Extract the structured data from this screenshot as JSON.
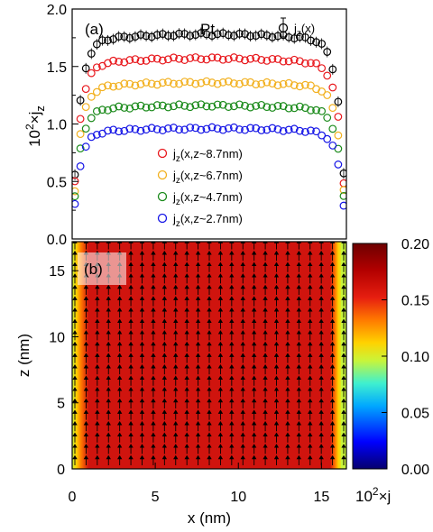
{
  "chart_data": [
    {
      "type": "scatter",
      "panel_label": "(a)",
      "material_label": "Pt",
      "ylabel": "10²×jz",
      "ylabel_base": "10",
      "ylabel_exp": "2",
      "ylabel_tail": "×j",
      "ylabel_sub": "z",
      "xlim": [
        0,
        16.5
      ],
      "ylim": [
        0,
        2.0
      ],
      "yticks": [
        "0.0",
        "0.5",
        "1.0",
        "1.5",
        "2.0"
      ],
      "legend_top": {
        "main": "j",
        "sub": "z",
        "tail": "(x)",
        "color": "#000000"
      },
      "legend": [
        {
          "main": "j",
          "sub": "z",
          "tail": "(x,z~8.7nm)",
          "color": "#e8171c"
        },
        {
          "main": "j",
          "sub": "z",
          "tail": "(x,z~6.7nm)",
          "color": "#f2b01e"
        },
        {
          "main": "j",
          "sub": "z",
          "tail": "(x,z~4.7nm)",
          "color": "#1a8a1a"
        },
        {
          "main": "j",
          "sub": "z",
          "tail": "(x,z~2.7nm)",
          "color": "#1414e6"
        }
      ],
      "series": [
        {
          "color": "#000000",
          "plateau": 1.78,
          "edge": 0.42,
          "error_bars": true
        },
        {
          "color": "#e8171c",
          "plateau": 1.57,
          "edge": 0.28,
          "error_bars": false
        },
        {
          "color": "#f2b01e",
          "plateau": 1.36,
          "edge": 0.2,
          "error_bars": false
        },
        {
          "color": "#1a8a1a",
          "plateau": 1.16,
          "edge": 0.15,
          "error_bars": false
        },
        {
          "color": "#1414e6",
          "plateau": 0.96,
          "edge": 0.1,
          "error_bars": false
        }
      ]
    },
    {
      "type": "heatmap",
      "panel_label": "(b)",
      "xlabel": "x (nm)",
      "ylabel": "z (nm)",
      "xlim": [
        0,
        16.5
      ],
      "ylim": [
        0,
        17.2
      ],
      "xticks": [
        "0",
        "5",
        "10",
        "15"
      ],
      "yticks": [
        "0",
        "5",
        "10",
        "15"
      ],
      "colorbar": {
        "ticks": [
          "0.00",
          "0.05",
          "0.10",
          "0.15",
          "0.20"
        ],
        "range": [
          0,
          0.2
        ],
        "label_base": "10",
        "label_exp": "2",
        "label_tail": "×j",
        "colors": [
          "#06006e",
          "#0000ff",
          "#00a8ff",
          "#3ff0cf",
          "#c8f53a",
          "#ffd200",
          "#ff7a00",
          "#e61e10",
          "#b30000",
          "#6e0000"
        ]
      },
      "plateau_value": 0.175,
      "arrow_direction": "up"
    }
  ]
}
